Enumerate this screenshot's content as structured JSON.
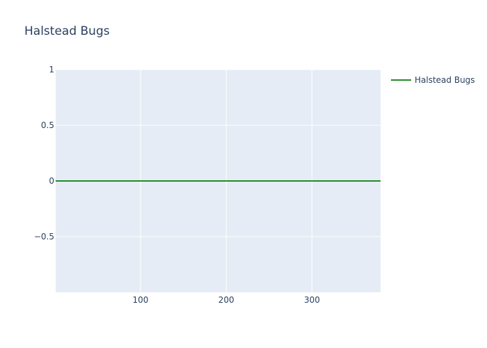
{
  "chart_data": {
    "type": "line",
    "title": "Halstead Bugs",
    "xlabel": "",
    "ylabel": "",
    "xlim": [
      1,
      380
    ],
    "ylim": [
      -1,
      1
    ],
    "x_ticks": [
      100,
      200,
      300
    ],
    "x_tick_labels": [
      "100",
      "200",
      "300"
    ],
    "y_ticks": [
      1,
      0.5,
      0,
      -0.5
    ],
    "y_tick_labels": [
      "1",
      "0.5",
      "0",
      "−0.5"
    ],
    "grid": true,
    "legend": "top-right",
    "series": [
      {
        "name": "Halstead Bugs",
        "color": "#228b22",
        "x": [
          1,
          380
        ],
        "y": [
          0,
          0
        ]
      }
    ]
  },
  "colors": {
    "plot_background": "#e5ecf6",
    "gridline": "#ffffff",
    "text": "#2a3f5f"
  }
}
